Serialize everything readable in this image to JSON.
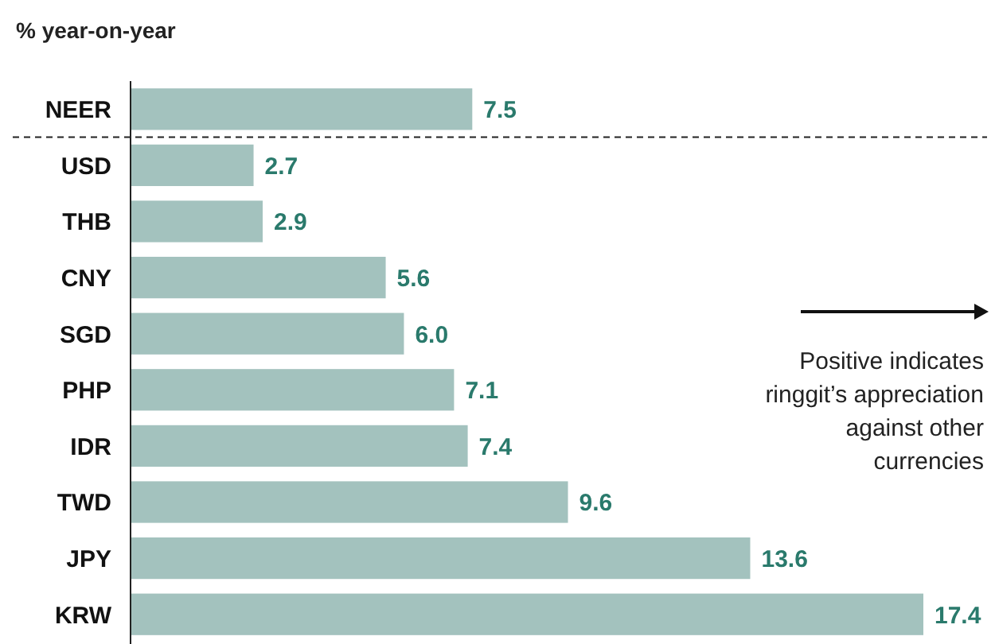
{
  "chart_data": {
    "type": "bar",
    "orientation": "horizontal",
    "xlabel": "% year-on-year",
    "categories": [
      "NEER",
      "USD",
      "THB",
      "CNY",
      "SGD",
      "PHP",
      "IDR",
      "TWD",
      "JPY",
      "KRW"
    ],
    "values": [
      7.5,
      2.7,
      2.9,
      5.6,
      6.0,
      7.1,
      7.4,
      9.6,
      13.6,
      17.4
    ],
    "value_labels": [
      "7.5",
      "2.7",
      "2.9",
      "5.6",
      "6.0",
      "7.1",
      "7.4",
      "9.6",
      "13.6",
      "17.4"
    ],
    "color": "#a3c2be",
    "annotations": [
      "Positive indicates ringgit’s appreciation against other currencies"
    ]
  }
}
